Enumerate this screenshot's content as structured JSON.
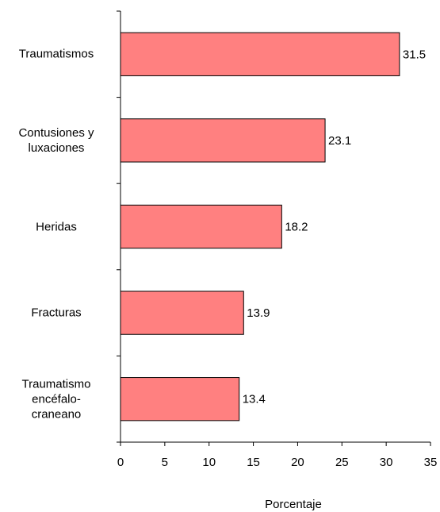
{
  "chart_data": {
    "type": "bar",
    "orientation": "horizontal",
    "categories": [
      "Traumatismos",
      "Contusiones y\nluxaciones",
      "Heridas",
      "Fracturas",
      "Traumatismo\nencéfalo-\ncraneano"
    ],
    "values": [
      31.5,
      23.1,
      18.2,
      13.9,
      13.4
    ],
    "color": "#ff8080",
    "xlabel": "Porcentaje",
    "xlim": [
      0,
      35
    ],
    "xticks": [
      0,
      5,
      10,
      15,
      20,
      25,
      30,
      35
    ],
    "grid": false
  }
}
